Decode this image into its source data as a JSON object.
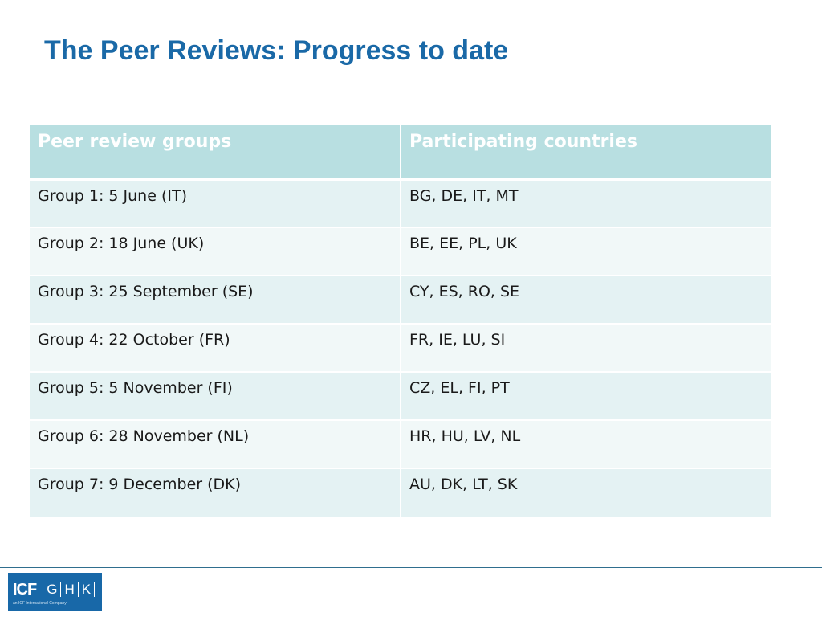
{
  "slide": {
    "title": "The Peer Reviews: Progress to date"
  },
  "table": {
    "headers": [
      "Peer review groups",
      "Participating countries"
    ],
    "rows": [
      [
        "Group 1: 5 June (IT)",
        "BG, DE, IT, MT"
      ],
      [
        "Group 2: 18 June (UK)",
        "BE, EE, PL, UK"
      ],
      [
        "Group 3: 25 September (SE)",
        "CY, ES, RO, SE"
      ],
      [
        "Group 4: 22 October (FR)",
        "FR, IE, LU, SI"
      ],
      [
        "Group 5: 5 November (FI)",
        "CZ, EL, FI, PT"
      ],
      [
        "Group 6: 28 November (NL)",
        "HR, HU, LV, NL"
      ],
      [
        "Group 7: 9 December (DK)",
        "AU, DK, LT, SK"
      ]
    ]
  },
  "logo": {
    "brand": "ICF",
    "letters": [
      "G",
      "H",
      "K"
    ],
    "tagline": "an ICF International Company"
  },
  "colors": {
    "title": "#1a69a7",
    "header_bg": "#b8dfe1",
    "row_odd": "#e4f2f3",
    "row_even": "#f1f8f8",
    "logo_bg": "#1868a8"
  }
}
